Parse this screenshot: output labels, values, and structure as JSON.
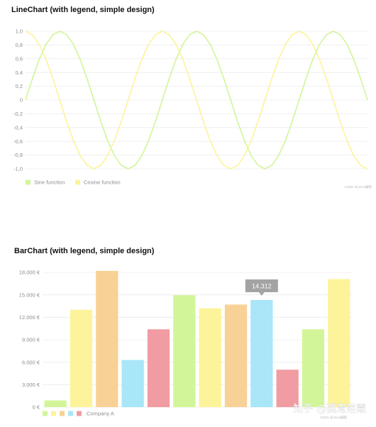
{
  "chart_data": [
    {
      "type": "line",
      "title": "LineChart (with legend, simple design)",
      "xlabel": "",
      "ylabel": "",
      "ylim": [
        -1.0,
        1.0
      ],
      "yticks": [
        "1,0",
        "0,8",
        "0,6",
        "0,4",
        "0,2",
        "0",
        "-0,2",
        "-0,4",
        "-0,6",
        "-0,8",
        "-1,0"
      ],
      "grid": "horizontal",
      "legend_position": "bottom-left",
      "series": [
        {
          "name": "Sine function",
          "color": "#d2f59a",
          "x": [
            0,
            0.5,
            1,
            1.5,
            2,
            2.5,
            3,
            3.5,
            4,
            4.5,
            5,
            5.5,
            6,
            6.5,
            7,
            7.5,
            8,
            8.5,
            9,
            9.5,
            10,
            10.5,
            11,
            11.5,
            12,
            12.5,
            13,
            13.5,
            14,
            14.5,
            15,
            15.5,
            16,
            16.5,
            17,
            17.5,
            18,
            18.5,
            19,
            19.5,
            20,
            20.5,
            21,
            21.5,
            22,
            22.5,
            23,
            23.5,
            24,
            24.5,
            25
          ],
          "values": [
            0.0,
            0.31,
            0.59,
            0.81,
            0.95,
            1.0,
            0.95,
            0.81,
            0.59,
            0.31,
            0.0,
            -0.31,
            -0.59,
            -0.81,
            -0.95,
            -1.0,
            -0.95,
            -0.81,
            -0.59,
            -0.31,
            0.0,
            0.31,
            0.59,
            0.81,
            0.95,
            1.0,
            0.95,
            0.81,
            0.59,
            0.31,
            0.0,
            -0.31,
            -0.59,
            -0.81,
            -0.95,
            -1.0,
            -0.95,
            -0.81,
            -0.59,
            -0.31,
            0.0,
            0.31,
            0.59,
            0.81,
            0.95,
            1.0,
            0.95,
            0.81,
            0.59,
            0.31,
            0.0
          ]
        },
        {
          "name": "Cosine function",
          "color": "#fdf39a",
          "x": [
            0,
            0.5,
            1,
            1.5,
            2,
            2.5,
            3,
            3.5,
            4,
            4.5,
            5,
            5.5,
            6,
            6.5,
            7,
            7.5,
            8,
            8.5,
            9,
            9.5,
            10,
            10.5,
            11,
            11.5,
            12,
            12.5,
            13,
            13.5,
            14,
            14.5,
            15,
            15.5,
            16,
            16.5,
            17,
            17.5,
            18,
            18.5,
            19,
            19.5,
            20,
            20.5,
            21,
            21.5,
            22,
            22.5,
            23,
            23.5,
            24,
            24.5,
            25
          ],
          "values": [
            1.0,
            0.95,
            0.81,
            0.59,
            0.31,
            0.0,
            -0.31,
            -0.59,
            -0.81,
            -0.95,
            -1.0,
            -0.95,
            -0.81,
            -0.59,
            -0.31,
            0.0,
            0.31,
            0.59,
            0.81,
            0.95,
            1.0,
            0.95,
            0.81,
            0.59,
            0.31,
            0.0,
            -0.31,
            -0.59,
            -0.81,
            -0.95,
            -1.0,
            -0.95,
            -0.81,
            -0.59,
            -0.31,
            0.0,
            0.31,
            0.59,
            0.81,
            0.95,
            1.0,
            0.95,
            0.81,
            0.59,
            0.31,
            0.0,
            -0.31,
            -0.59,
            -0.81,
            -0.95,
            -1.0
          ]
        }
      ],
      "credit": "CSDN @Jenni编程"
    },
    {
      "type": "bar",
      "title": "BarChart (with legend, simple design)",
      "xlabel": "",
      "ylabel": "",
      "ylim": [
        0,
        19000
      ],
      "yticks": [
        "0 €",
        "3.000 €",
        "6.000 €",
        "9.000 €",
        "12.000 €",
        "15.000 €",
        "18.000 €"
      ],
      "ytick_values": [
        0,
        3000,
        6000,
        9000,
        12000,
        15000,
        18000
      ],
      "grid": "horizontal",
      "legend_position": "bottom-left",
      "values": [
        900,
        13000,
        18200,
        6300,
        10400,
        14950,
        13200,
        13700,
        14312,
        5000,
        10400,
        17100
      ],
      "colors": [
        "#d2f59a",
        "#fdf39a",
        "#f8d196",
        "#a8e6f8",
        "#f09ca2",
        "#d2f59a",
        "#fdf39a",
        "#f8d196",
        "#a8e6f8",
        "#f09ca2",
        "#d2f59a",
        "#fdf39a"
      ],
      "series": [
        {
          "name": "Company A"
        }
      ],
      "legend_colors": [
        "#d2f59a",
        "#fdf39a",
        "#f8d196",
        "#a8e6f8",
        "#f09ca2"
      ],
      "tooltip": {
        "index": 8,
        "text": "14.312"
      },
      "credit": "CSDN @Jenni编程"
    }
  ],
  "watermark": "知乎 @孤鸾落霞"
}
